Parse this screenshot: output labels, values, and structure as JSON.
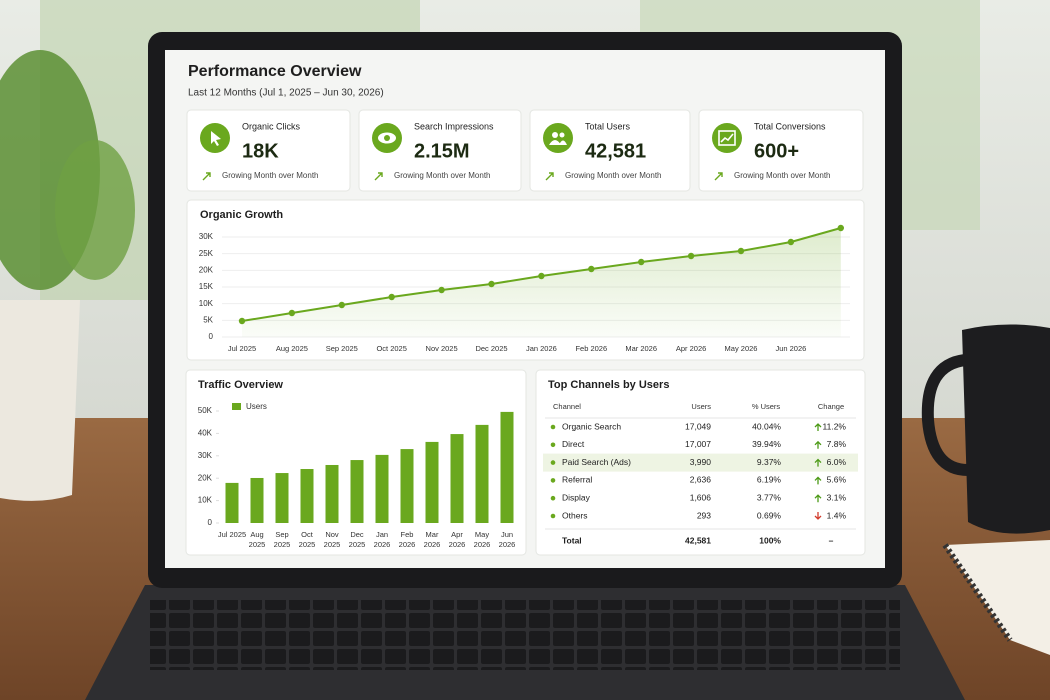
{
  "header": {
    "title": "Performance Overview",
    "subtitle": "Last 12 Months (Jul 1, 2025 – Jun 30, 2026)"
  },
  "kpis": [
    {
      "label": "Organic Clicks",
      "value": "18K",
      "trend": "Growing Month over Month",
      "icon": "cursor"
    },
    {
      "label": "Search Impressions",
      "value": "2.15M",
      "trend": "Growing Month over Month",
      "icon": "eye"
    },
    {
      "label": "Total Users",
      "value": "42,581",
      "trend": "Growing Month over Month",
      "icon": "users"
    },
    {
      "label": "Total Conversions",
      "value": "600+",
      "trend": "Growing Month over Month",
      "icon": "chart"
    }
  ],
  "chart_data": [
    {
      "type": "line",
      "title": "Organic Growth",
      "categories": [
        "Jul 2025",
        "Aug 2025",
        "Sep 2025",
        "Oct 2025",
        "Nov 2025",
        "Dec 2025",
        "Jan 2026",
        "Feb 2026",
        "Mar 2026",
        "Apr 2026",
        "May 2026",
        "Jun 2026",
        null
      ],
      "series": [
        {
          "color": "#6aa81e",
          "values": [
            4800,
            7200,
            9600,
            12000,
            14100,
            15900,
            18300,
            20400,
            22500,
            24300,
            25800,
            28500,
            32700
          ]
        }
      ],
      "ylim": [
        0,
        30000
      ],
      "yticks": [
        0,
        {
          "value": 5000,
          "label": "5K"
        },
        {
          "value": 10000,
          "label": "10K"
        },
        {
          "value": 15000,
          "label": "15K"
        },
        {
          "value": 20000,
          "label": "20K"
        },
        {
          "value": 25000,
          "label": "25K"
        },
        {
          "value": 30000,
          "label": "30K"
        }
      ],
      "grid": true,
      "area": true
    },
    {
      "type": "bar",
      "title": "Traffic Overview",
      "categories": [
        "Jul 2025",
        "Aug 2025",
        "Sep 2025",
        "Oct 2025",
        "Nov 2025",
        "Dec 2025",
        "Jan 2026",
        "Feb 2026",
        "Mar 2026",
        "Apr 2026",
        "May 2026",
        "Jun 2026"
      ],
      "series": [
        {
          "name": "Users",
          "color": "#6aa81e",
          "values": [
            17900,
            20100,
            22300,
            24100,
            25900,
            28100,
            30400,
            33000,
            36200,
            39700,
            43800,
            49600
          ]
        }
      ],
      "ylim": [
        0,
        50000
      ],
      "yticks": [
        0,
        {
          "value": 10000,
          "label": "10K"
        },
        {
          "value": 20000,
          "label": "20K"
        },
        {
          "value": 30000,
          "label": "30K"
        },
        {
          "value": 40000,
          "label": "40K"
        },
        {
          "value": 50000,
          "label": "50K"
        }
      ],
      "legend": "top-left"
    }
  ],
  "table": {
    "title": "Top Channels by Users",
    "columns": [
      "Channel",
      "Users",
      "% Users",
      "Change"
    ],
    "rows": [
      [
        "Organic Search",
        "17,049",
        "40.04%",
        "11.2%"
      ],
      [
        "Direct",
        "17,007",
        "39.94%",
        "7.8%"
      ],
      [
        "Paid Search (Ads)",
        "3,990",
        "9.37%",
        "6.0%"
      ],
      [
        "Referral",
        "2,636",
        "6.19%",
        "5.6%"
      ],
      [
        "Display",
        "1,606",
        "3.77%",
        "3.1%"
      ],
      [
        "Others",
        "293",
        "0.69%",
        "1.4%"
      ]
    ],
    "directions": [
      "up",
      "up",
      "up",
      "up",
      "up",
      "down"
    ],
    "highlight_row": 2,
    "total": [
      "Total",
      "42,581",
      "100%",
      "–"
    ]
  }
}
